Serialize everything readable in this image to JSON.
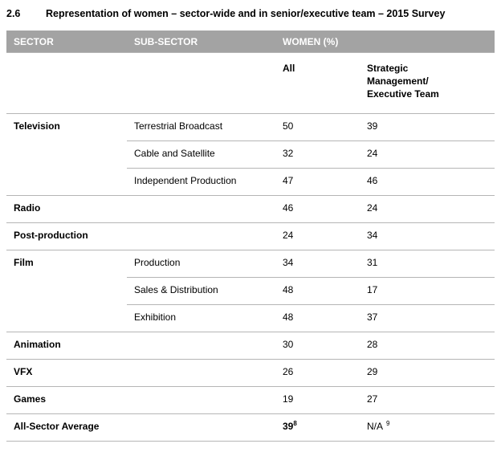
{
  "document": {
    "section_number": "2.6",
    "section_title": "Representation of women – sector-wide and in senior/executive team – 2015 Survey"
  },
  "table": {
    "columns": {
      "sector": "SECTOR",
      "sub_sector": "SUB-SECTOR",
      "women_pct": "WOMEN (%)"
    },
    "subcolumns": {
      "all": "All",
      "exec": "Strategic Management/ Executive Team"
    },
    "rows": [
      {
        "sector": "Television",
        "sub": "Terrestrial Broadcast",
        "all": "50",
        "exec": "39"
      },
      {
        "sub": "Cable and Satellite",
        "all": "32",
        "exec": "24"
      },
      {
        "sub": "Independent Production",
        "all": "47",
        "exec": "46"
      },
      {
        "sector": "Radio",
        "sub": "",
        "all": "46",
        "exec": "24"
      },
      {
        "sector": "Post-production",
        "sub": "",
        "all": "24",
        "exec": "34"
      },
      {
        "sector": "Film",
        "sub": "Production",
        "all": "34",
        "exec": "31"
      },
      {
        "sub": "Sales & Distribution",
        "all": "48",
        "exec": "17"
      },
      {
        "sub": "Exhibition",
        "all": "48",
        "exec": "37"
      },
      {
        "sector": "Animation",
        "sub": "",
        "all": "30",
        "exec": "28"
      },
      {
        "sector": "VFX",
        "sub": "",
        "all": "26",
        "exec": "29"
      },
      {
        "sector": "Games",
        "sub": "",
        "all": "19",
        "exec": "27"
      },
      {
        "sector": "All-Sector Average",
        "sub": "",
        "all": "39",
        "all_footnote": "8",
        "exec": "N/A",
        "exec_footnote": "9"
      }
    ]
  }
}
